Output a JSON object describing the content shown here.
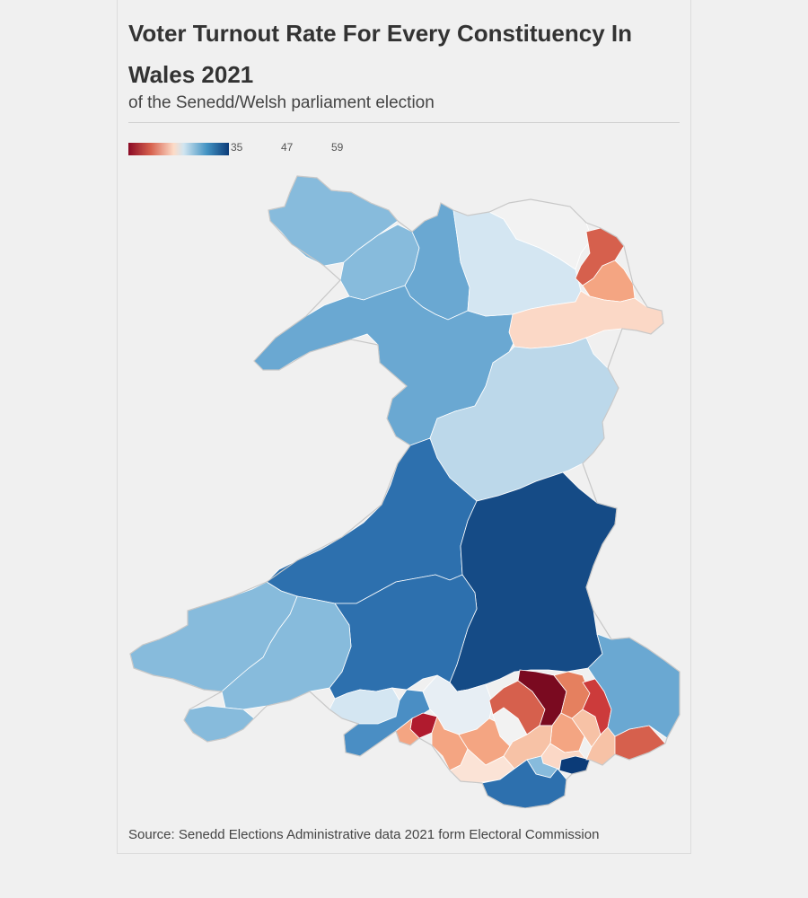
{
  "header": {
    "title": "Voter Turnout Rate For Every Constituency In Wales 2021",
    "subtitle": "of the Senedd/Welsh parliament election"
  },
  "legend": {
    "ticks": [
      "35",
      "47",
      "59"
    ],
    "colors": [
      "#8b0a25",
      "#d6604d",
      "#fddbc7",
      "#d1e5f0",
      "#4393c3",
      "#0b3b78"
    ]
  },
  "footer": {
    "source": "Source: Senedd Elections Administrative data 2021 form Electoral Commission"
  }
}
